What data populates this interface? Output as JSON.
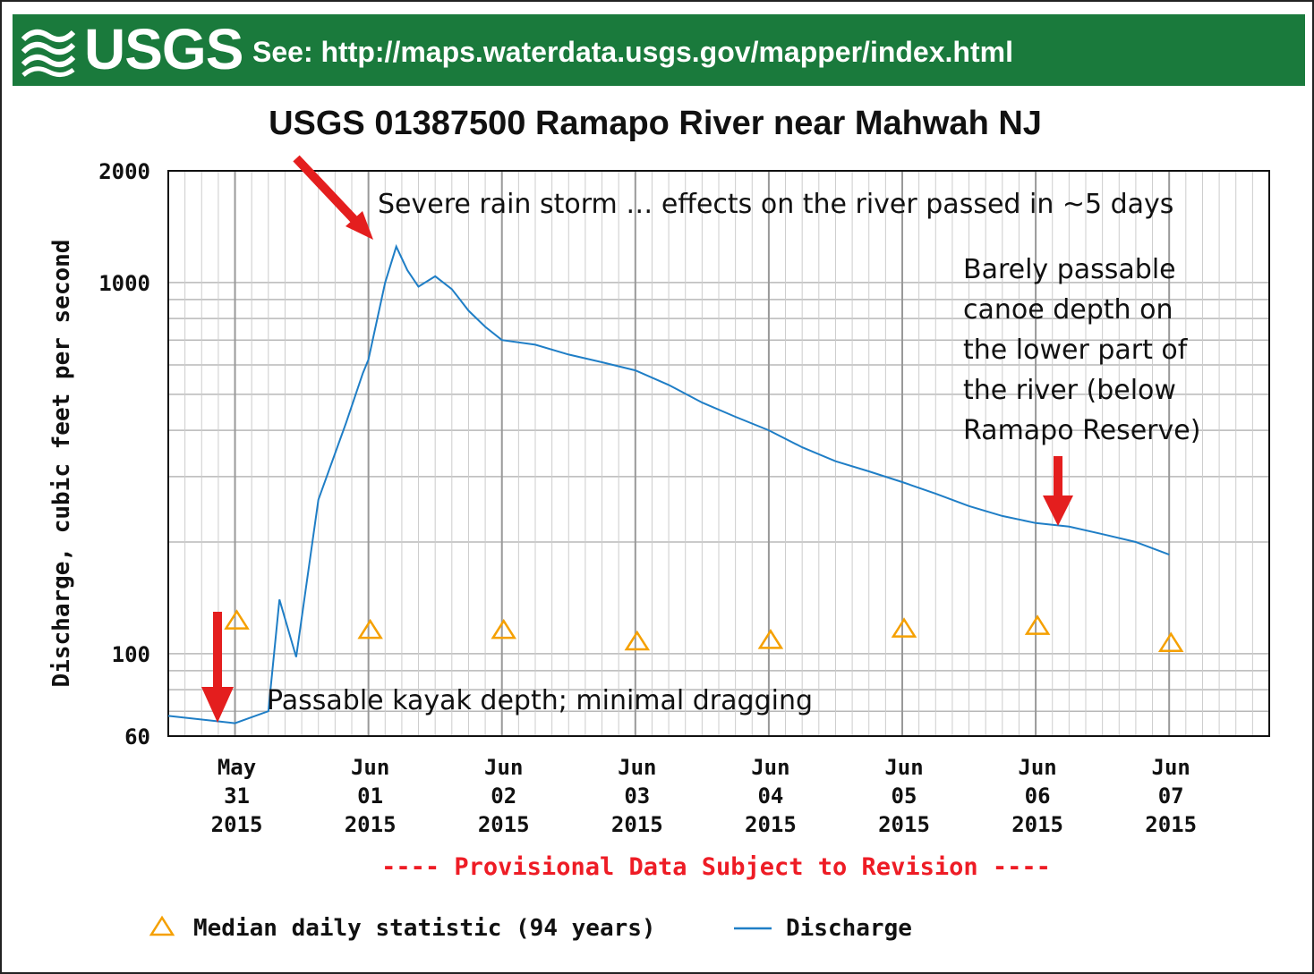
{
  "banner": {
    "logo_text": "USGS",
    "link_text": "See: http://maps.waterdata.usgs.gov/mapper/index.html",
    "color": "#1a7a3c"
  },
  "chart_data": {
    "type": "line",
    "title": "USGS 01387500 Ramapo River near Mahwah NJ",
    "ylabel": "Discharge, cubic feet per second",
    "xlabel": "",
    "yscale": "log",
    "ylim": [
      60,
      2000
    ],
    "xlim": [
      "2015-05-30T12:00",
      "2015-06-07T18:00"
    ],
    "ytick_labels": [
      "2000",
      "1000",
      "100",
      "60"
    ],
    "xtick_labels": [
      {
        "line1": "May",
        "line2": "31",
        "line3": "2015"
      },
      {
        "line1": "Jun",
        "line2": "01",
        "line3": "2015"
      },
      {
        "line1": "Jun",
        "line2": "02",
        "line3": "2015"
      },
      {
        "line1": "Jun",
        "line2": "03",
        "line3": "2015"
      },
      {
        "line1": "Jun",
        "line2": "04",
        "line3": "2015"
      },
      {
        "line1": "Jun",
        "line2": "05",
        "line3": "2015"
      },
      {
        "line1": "Jun",
        "line2": "06",
        "line3": "2015"
      },
      {
        "line1": "Jun",
        "line2": "07",
        "line3": "2015"
      }
    ],
    "grid": true,
    "series": [
      {
        "name": "Discharge",
        "color": "#1f7ec6",
        "x": [
          "2015-05-30T12:00",
          "2015-05-31T00:00",
          "2015-05-31T06:00",
          "2015-05-31T08:00",
          "2015-05-31T11:00",
          "2015-05-31T15:00",
          "2015-05-31T20:00",
          "2015-05-31T23:00",
          "2015-06-01T00:00",
          "2015-06-01T03:00",
          "2015-06-01T05:00",
          "2015-06-01T07:00",
          "2015-06-01T09:00",
          "2015-06-01T12:00",
          "2015-06-01T15:00",
          "2015-06-01T18:00",
          "2015-06-01T21:00",
          "2015-06-02T00:00",
          "2015-06-02T06:00",
          "2015-06-02T12:00",
          "2015-06-02T18:00",
          "2015-06-03T00:00",
          "2015-06-03T06:00",
          "2015-06-03T12:00",
          "2015-06-03T18:00",
          "2015-06-04T00:00",
          "2015-06-04T06:00",
          "2015-06-04T12:00",
          "2015-06-04T18:00",
          "2015-06-05T00:00",
          "2015-06-05T06:00",
          "2015-06-05T12:00",
          "2015-06-05T18:00",
          "2015-06-06T00:00",
          "2015-06-06T06:00",
          "2015-06-06T12:00",
          "2015-06-06T18:00",
          "2015-06-07T00:00"
        ],
        "values": [
          68,
          65,
          70,
          140,
          98,
          260,
          420,
          570,
          620,
          1000,
          1250,
          1080,
          975,
          1040,
          960,
          840,
          760,
          700,
          680,
          640,
          610,
          580,
          530,
          475,
          435,
          400,
          360,
          330,
          310,
          290,
          270,
          250,
          235,
          225,
          220,
          210,
          200,
          185
        ]
      },
      {
        "name": "Median daily statistic (94 years)",
        "color": "#f5a000",
        "marker": "triangle",
        "x": [
          "2015-05-31",
          "2015-06-01",
          "2015-06-02",
          "2015-06-03",
          "2015-06-04",
          "2015-06-05",
          "2015-06-06",
          "2015-06-07"
        ],
        "values": [
          123,
          116,
          116,
          108,
          109,
          117,
          119,
          107
        ]
      }
    ],
    "annotations": [
      "Severe rain storm … effects on the river passed in ~5 days",
      "Barely passable",
      "canoe depth on",
      "the lower part of",
      "the river (below",
      "Ramapo Reserve)",
      "Passable kayak depth; minimal dragging"
    ],
    "provisional_note": "---- Provisional Data Subject to Revision ----",
    "legend": {
      "placement": "bottom",
      "median_label": "Median daily statistic (94 years)",
      "discharge_label": "Discharge"
    },
    "arrow_color": "#e41e1e"
  }
}
